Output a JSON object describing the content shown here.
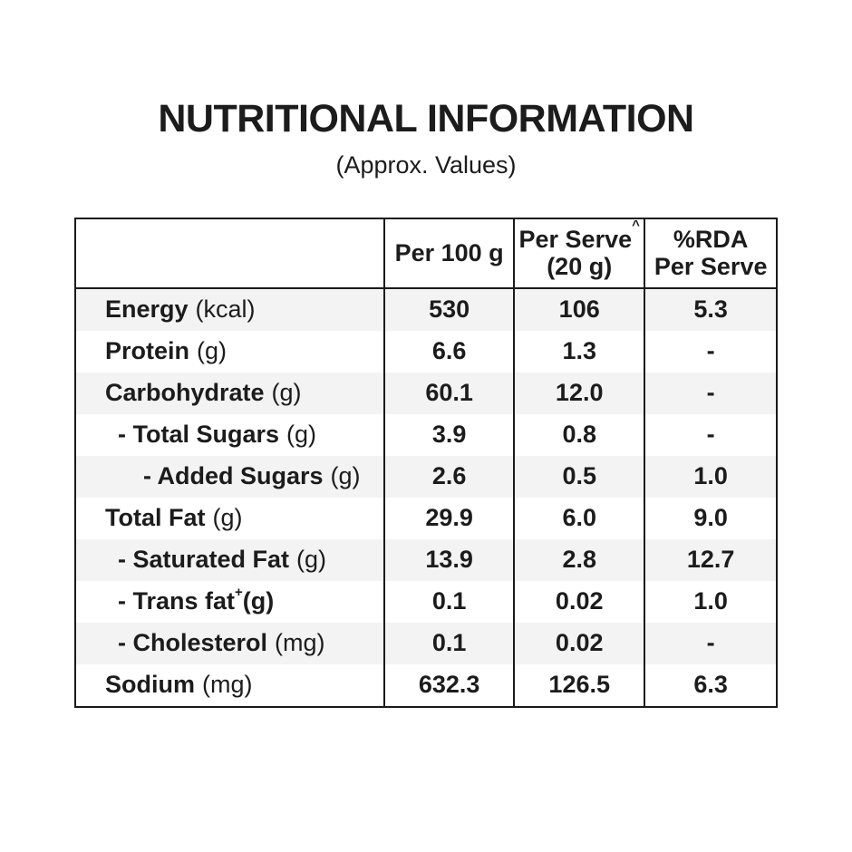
{
  "title": "NUTRITIONAL INFORMATION",
  "subtitle": "(Approx. Values)",
  "colors": {
    "text": "#1c1c1c",
    "border": "#1a1a1a",
    "stripe": "#f3f3f3",
    "background": "#ffffff"
  },
  "table": {
    "headers": [
      {
        "line1": "Per 100 g"
      },
      {
        "line1": "Per Serve",
        "sup": "^",
        "line2": "(20 g)"
      },
      {
        "line1": "%RDA",
        "line2": "Per Serve"
      }
    ],
    "rows": [
      {
        "name": "Energy",
        "unit": "(kcal)",
        "per_100g": "530",
        "per_serve": "106",
        "rda_per_serve": "5.3"
      },
      {
        "name": "Protein",
        "unit": "(g)",
        "per_100g": "6.6",
        "per_serve": "1.3",
        "rda_per_serve": "-"
      },
      {
        "name": "Carbohydrate",
        "unit": "(g)",
        "per_100g": "60.1",
        "per_serve": "12.0",
        "rda_per_serve": "-"
      },
      {
        "name": "- Total Sugars",
        "unit": "(g)",
        "per_100g": "3.9",
        "per_serve": "0.8",
        "rda_per_serve": "-"
      },
      {
        "name": "- Added Sugars",
        "unit": "(g)",
        "per_100g": "2.6",
        "per_serve": "0.5",
        "rda_per_serve": "1.0"
      },
      {
        "name": "Total Fat",
        "unit": "(g)",
        "per_100g": "29.9",
        "per_serve": "6.0",
        "rda_per_serve": "9.0"
      },
      {
        "name": "- Saturated Fat",
        "unit": "(g)",
        "per_100g": "13.9",
        "per_serve": "2.8",
        "rda_per_serve": "12.7"
      },
      {
        "name": "- Trans fat",
        "sup": "+",
        "unit": "(g)",
        "per_100g": "0.1",
        "per_serve": "0.02",
        "rda_per_serve": "1.0"
      },
      {
        "name": "- Cholesterol",
        "unit": "(mg)",
        "per_100g": "0.1",
        "per_serve": "0.02",
        "rda_per_serve": "-"
      },
      {
        "name": "Sodium",
        "unit": "(mg)",
        "per_100g": "632.3",
        "per_serve": "126.5",
        "rda_per_serve": "6.3"
      }
    ]
  }
}
